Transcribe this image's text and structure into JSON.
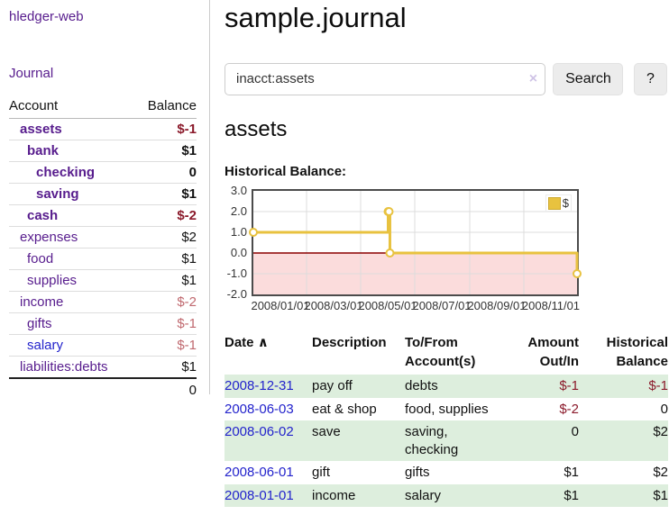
{
  "colors": {
    "link_purple": "#571c8d",
    "link_blue": "#2323cc",
    "neg_dark": "#8b1a2b",
    "neg_pale": "#c0696f",
    "row_green": "#ddeedd",
    "chart_line": "#e8c23f",
    "chart_zero": "#8b0000",
    "chart_neg_fill": "#fbdcdc",
    "chart_grid": "#dcdcdc"
  },
  "sidebar": {
    "app_title": "hledger-web",
    "journal_link": "Journal",
    "accounts": {
      "header_account": "Account",
      "header_balance": "Balance",
      "rows": [
        {
          "name": "assets",
          "balance": "$-1",
          "indent": 1,
          "emph": "bold",
          "name_tone": "purple",
          "bal_tone": "neg-dark"
        },
        {
          "name": "bank",
          "balance": "$1",
          "indent": 2,
          "emph": "bold",
          "name_tone": "purple",
          "bal_tone": "pos"
        },
        {
          "name": "checking",
          "balance": "0",
          "indent": 3,
          "emph": "bold",
          "name_tone": "purple",
          "bal_tone": "pos"
        },
        {
          "name": "saving",
          "balance": "$1",
          "indent": 3,
          "emph": "bold",
          "name_tone": "purple",
          "bal_tone": "pos"
        },
        {
          "name": "cash",
          "balance": "$-2",
          "indent": 2,
          "emph": "bold",
          "name_tone": "purple",
          "bal_tone": "neg-dark"
        },
        {
          "name": "expenses",
          "balance": "$2",
          "indent": 1,
          "emph": "normal",
          "name_tone": "purple",
          "bal_tone": "pos"
        },
        {
          "name": "food",
          "balance": "$1",
          "indent": 2,
          "emph": "normal",
          "name_tone": "purple",
          "bal_tone": "pos"
        },
        {
          "name": "supplies",
          "balance": "$1",
          "indent": 2,
          "emph": "normal",
          "name_tone": "purple",
          "bal_tone": "pos"
        },
        {
          "name": "income",
          "balance": "$-2",
          "indent": 1,
          "emph": "normal",
          "name_tone": "purple",
          "bal_tone": "neg-pale"
        },
        {
          "name": "gifts",
          "balance": "$-1",
          "indent": 2,
          "emph": "normal",
          "name_tone": "purple",
          "bal_tone": "neg-pale"
        },
        {
          "name": "salary",
          "balance": "$-1",
          "indent": 2,
          "emph": "normal",
          "name_tone": "blue",
          "bal_tone": "neg-pale"
        },
        {
          "name": "liabilities:debts",
          "balance": "$1",
          "indent": 1,
          "emph": "normal",
          "name_tone": "purple",
          "bal_tone": "pos"
        }
      ],
      "total": "0"
    }
  },
  "main": {
    "title": "sample.journal",
    "search": {
      "value": "inacct:assets",
      "clear_icon": "×",
      "search_button": "Search",
      "help_button": "?"
    },
    "heading": "assets",
    "chart_title": "Historical Balance:",
    "register": {
      "headers": {
        "date": "Date",
        "sort_icon": "∧",
        "description": "Description",
        "accounts": "To/From Account(s)",
        "amount": "Amount Out/In",
        "balance": "Historical Balance"
      },
      "rows": [
        {
          "date": "2008-12-31",
          "description": "pay off",
          "accounts": "debts",
          "amount": "$-1",
          "amount_tone": "neg",
          "balance": "$-1",
          "balance_tone": "neg"
        },
        {
          "date": "2008-06-03",
          "description": "eat & shop",
          "accounts": "food, supplies",
          "amount": "$-2",
          "amount_tone": "neg",
          "balance": "0",
          "balance_tone": "pos"
        },
        {
          "date": "2008-06-02",
          "description": "save",
          "accounts": "saving, checking",
          "amount": "0",
          "amount_tone": "pos",
          "balance": "$2",
          "balance_tone": "pos"
        },
        {
          "date": "2008-06-01",
          "description": "gift",
          "accounts": "gifts",
          "amount": "$1",
          "amount_tone": "pos",
          "balance": "$2",
          "balance_tone": "pos"
        },
        {
          "date": "2008-01-01",
          "description": "income",
          "accounts": "salary",
          "amount": "$1",
          "amount_tone": "pos",
          "balance": "$1",
          "balance_tone": "pos"
        }
      ]
    }
  },
  "chart_data": {
    "type": "line",
    "step": true,
    "title": "Historical Balance:",
    "series": [
      {
        "name": "$",
        "x": [
          "2008/01/01",
          "2008/06/01",
          "2008/06/02",
          "2008/06/03",
          "2008/12/31"
        ],
        "x_day": [
          0,
          152,
          153,
          154,
          365
        ],
        "values": [
          1,
          2,
          2,
          0,
          -1
        ]
      }
    ],
    "xticks": [
      {
        "label": "2008/01/01",
        "day": 0
      },
      {
        "label": "2008/03/01",
        "day": 60
      },
      {
        "label": "2008/05/01",
        "day": 121
      },
      {
        "label": "2008/07/01",
        "day": 182
      },
      {
        "label": "2008/09/01",
        "day": 244
      },
      {
        "label": "2008/11/01",
        "day": 305
      }
    ],
    "yticks": [
      3,
      2,
      1,
      0,
      -1,
      -2
    ],
    "ylim": [
      -2,
      3
    ],
    "x_range_days": 365,
    "grid": true,
    "negative_region_shaded": true,
    "legend": {
      "label": "$",
      "position": "top-right"
    }
  }
}
